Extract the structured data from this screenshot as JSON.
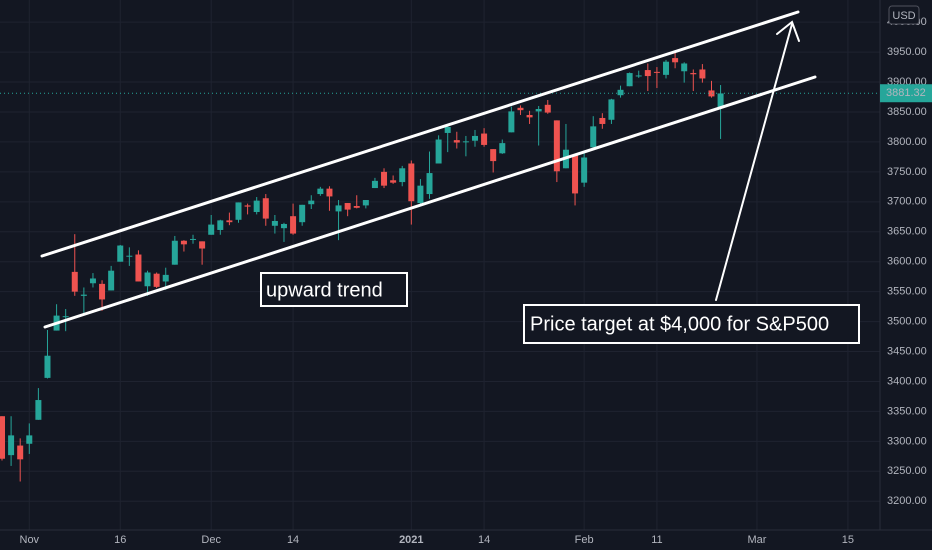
{
  "chart_data": {
    "type": "candlestick",
    "currency": "USD",
    "annotations": [
      "upward trend",
      "Price target at $4,000 for S&P500"
    ],
    "categories": [
      null,
      null,
      null,
      "Nov",
      null,
      null,
      null,
      null,
      null,
      null,
      null,
      null,
      null,
      "16",
      null,
      null,
      null,
      null,
      null,
      null,
      null,
      null,
      null,
      "Dec",
      null,
      null,
      null,
      null,
      null,
      null,
      null,
      null,
      "14",
      null,
      null,
      null,
      null,
      null,
      null,
      null,
      null,
      null,
      null,
      null,
      null,
      "2021",
      null,
      null,
      null,
      null,
      null,
      null,
      null,
      "14",
      null,
      null,
      null,
      null,
      null,
      null,
      null,
      null,
      null,
      null,
      "Feb",
      null,
      null,
      null,
      null,
      null,
      null,
      null,
      "11",
      null,
      null,
      null,
      null,
      null,
      null,
      null,
      null,
      null,
      null,
      "Mar",
      null,
      null,
      null,
      null,
      null,
      null,
      null,
      null,
      null,
      "15",
      null,
      null,
      null
    ],
    "open": [
      3342,
      3277,
      3293,
      3296,
      3336,
      3406,
      3485,
      3508,
      3583,
      3543,
      3564,
      3563,
      3552,
      3600,
      3610,
      3612,
      3559,
      3580,
      3567,
      3595,
      3635,
      3638,
      3634,
      3645,
      3653,
      3669,
      3670,
      3694,
      3683,
      3706,
      3660,
      3656,
      3676,
      3666,
      3696,
      3713,
      3722,
      3684,
      3698,
      3693,
      3694,
      3723,
      3750,
      3736,
      3733,
      3764,
      3698,
      3713,
      3764,
      3815,
      3803,
      3801,
      3802,
      3814,
      3788,
      3781,
      3816,
      3857,
      3845,
      3851,
      3862,
      3836,
      3756,
      3778,
      3732,
      3791,
      3840,
      3837,
      3878,
      3893,
      3911,
      3920,
      3917,
      3912,
      3940,
      3918,
      3915,
      3921,
      3886,
      3857,
      null,
      null,
      null,
      null,
      null,
      null,
      null,
      null,
      null,
      null,
      null,
      null,
      null,
      null,
      null,
      null,
      null
    ],
    "high": [
      3342,
      3342,
      3305,
      3330,
      3389,
      3486,
      3529,
      3521,
      3646,
      3557,
      3581,
      3569,
      3593,
      3628,
      3624,
      3619,
      3585,
      3582,
      3590,
      3643,
      3636,
      3645,
      3634,
      3678,
      3670,
      3682,
      3699,
      3697,
      3708,
      3713,
      3678,
      3665,
      3697,
      3695,
      3711,
      3725,
      3726,
      3703,
      3698,
      3711,
      3703,
      3740,
      3756,
      3744,
      3760,
      3769,
      3738,
      3784,
      3811,
      3827,
      3817,
      3810,
      3820,
      3823,
      3788,
      3804,
      3859,
      3861,
      3852,
      3860,
      3870,
      3836,
      3830,
      3778,
      3784,
      3843,
      3848,
      3872,
      3894,
      3916,
      3919,
      3931,
      3925,
      3937,
      3950,
      3933,
      3921,
      3930,
      3902,
      3895,
      null,
      null,
      null,
      null,
      null,
      null,
      null,
      null,
      null,
      null,
      null,
      null,
      null,
      null,
      null,
      null,
      null
    ],
    "low": [
      3268,
      3259,
      3233,
      3279,
      3336,
      3405,
      3485,
      3484,
      3543,
      3511,
      3557,
      3518,
      3552,
      3600,
      3593,
      3567,
      3543,
      3556,
      3553,
      3595,
      3617,
      3630,
      3595,
      3645,
      3645,
      3661,
      3665,
      3679,
      3679,
      3660,
      3647,
      3633,
      3645,
      3660,
      3688,
      3710,
      3685,
      3636,
      3676,
      3689,
      3689,
      3723,
      3723,
      3730,
      3726,
      3662,
      3695,
      3705,
      3764,
      3783,
      3789,
      3776,
      3792,
      3792,
      3749,
      3780,
      3816,
      3845,
      3830,
      3794,
      3847,
      3733,
      3756,
      3694,
      3725,
      3791,
      3822,
      3830,
      3874,
      3893,
      3907,
      3885,
      3890,
      3906,
      3923,
      3899,
      3885,
      3899,
      3874,
      3805,
      null,
      null,
      null,
      null,
      null,
      null,
      null,
      null,
      null,
      null,
      null,
      null,
      null,
      null,
      null,
      null,
      null
    ],
    "close": [
      3271,
      3310,
      3270,
      3310,
      3369,
      3443,
      3510,
      3509,
      3550,
      3545,
      3572,
      3537,
      3585,
      3627,
      3610,
      3567,
      3582,
      3558,
      3578,
      3635,
      3629,
      3638,
      3622,
      3662,
      3669,
      3666,
      3699,
      3692,
      3702,
      3672,
      3668,
      3663,
      3647,
      3695,
      3702,
      3722,
      3709,
      3694,
      3687,
      3690,
      3703,
      3735,
      3727,
      3732,
      3756,
      3701,
      3727,
      3748,
      3804,
      3825,
      3799,
      3801,
      3810,
      3795,
      3768,
      3798,
      3851,
      3853,
      3841,
      3855,
      3849,
      3751,
      3787,
      3714,
      3774,
      3826,
      3830,
      3871,
      3887,
      3915,
      3911,
      3910,
      3916,
      3934,
      3933,
      3931,
      3913,
      3906,
      3876,
      3881,
      null,
      null,
      null,
      null,
      null,
      null,
      null,
      null,
      null,
      null,
      null,
      null,
      null,
      null,
      null,
      null,
      null
    ],
    "up_color": "#26a69a",
    "down_color": "#ef5350",
    "last_price": {
      "value": 3881.32,
      "label": "3881.32"
    },
    "ylim": [
      3152,
      4037
    ],
    "yticks": [
      {
        "value": 3200,
        "label": "3200.00"
      },
      {
        "value": 3250,
        "label": "3250.00"
      },
      {
        "value": 3300,
        "label": "3300.00"
      },
      {
        "value": 3350,
        "label": "3350.00"
      },
      {
        "value": 3400,
        "label": "3400.00"
      },
      {
        "value": 3450,
        "label": "3450.00"
      },
      {
        "value": 3500,
        "label": "3500.00"
      },
      {
        "value": 3550,
        "label": "3550.00"
      },
      {
        "value": 3600,
        "label": "3600.00"
      },
      {
        "value": 3650,
        "label": "3650.00"
      },
      {
        "value": 3700,
        "label": "3700.00"
      },
      {
        "value": 3750,
        "label": "3750.00"
      },
      {
        "value": 3800,
        "label": "3800.00"
      },
      {
        "value": 3850,
        "label": "3850.00"
      },
      {
        "value": 3900,
        "label": "3900.00"
      },
      {
        "value": 3950,
        "label": "3950.00"
      },
      {
        "value": 4000,
        "label": "4000.00"
      }
    ],
    "grid": true
  }
}
